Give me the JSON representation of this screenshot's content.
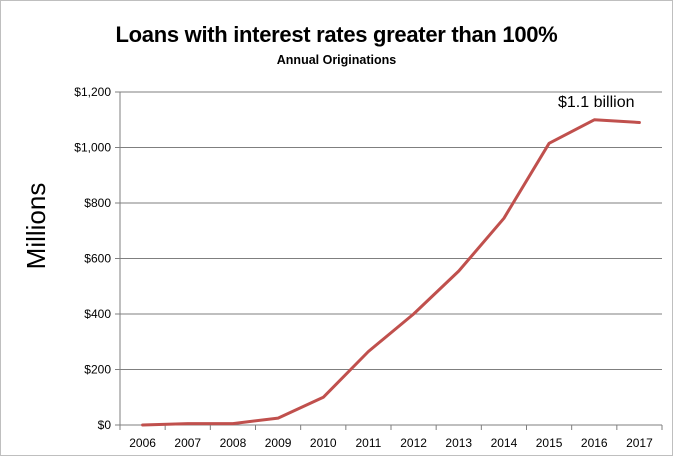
{
  "chart_data": {
    "type": "line",
    "title": "Loans with interest rates greater than 100%",
    "subtitle": "Annual Originations",
    "xlabel": "",
    "ylabel": "Millions",
    "categories": [
      "2006",
      "2007",
      "2008",
      "2009",
      "2010",
      "2011",
      "2012",
      "2013",
      "2014",
      "2015",
      "2016",
      "2017"
    ],
    "series": [
      {
        "values": [
          0,
          5,
          5,
          25,
          100,
          265,
          400,
          555,
          745,
          1015,
          1100,
          1090
        ]
      }
    ],
    "ylim": [
      0,
      1200
    ],
    "yticks": [
      0,
      200,
      400,
      600,
      800,
      1000,
      1200
    ],
    "ytick_labels": [
      "$0",
      "$200",
      "$400",
      "$600",
      "$800",
      "$1,000",
      "$1,200"
    ],
    "grid": true,
    "line_color": "#c0504d",
    "annotation": {
      "text": "$1.1 billion",
      "category": "2016"
    }
  }
}
